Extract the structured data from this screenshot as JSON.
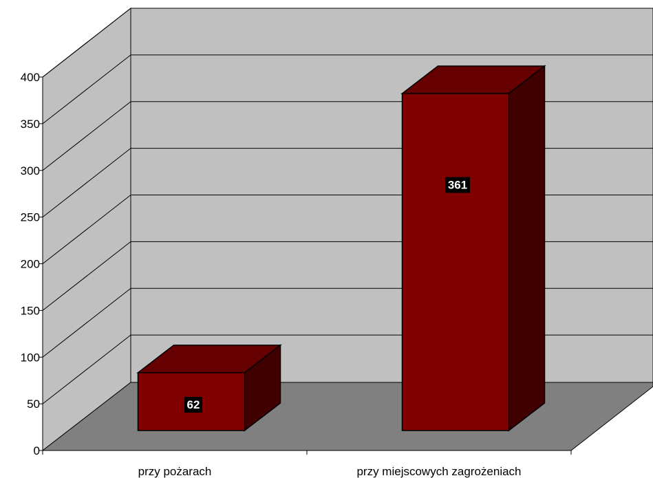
{
  "chart_data": {
    "type": "bar",
    "categories": [
      "przy pożarach",
      "przy miejscowych zagrożeniach"
    ],
    "values": [
      62,
      361
    ],
    "data_labels": [
      "62",
      "361"
    ],
    "ylim": [
      0,
      400
    ],
    "yticks": [
      "0",
      "50",
      "100",
      "150",
      "200",
      "250",
      "300",
      "350",
      "400"
    ],
    "grid": true,
    "three_d": true,
    "legend": "none"
  },
  "colors": {
    "bar_front": "#800000",
    "bar_top": "#660000",
    "bar_side": "#400000",
    "back_wall": "#c0c0c0",
    "side_wall": "#c0c0c0",
    "floor": "#808080",
    "label_box": "#000000"
  }
}
